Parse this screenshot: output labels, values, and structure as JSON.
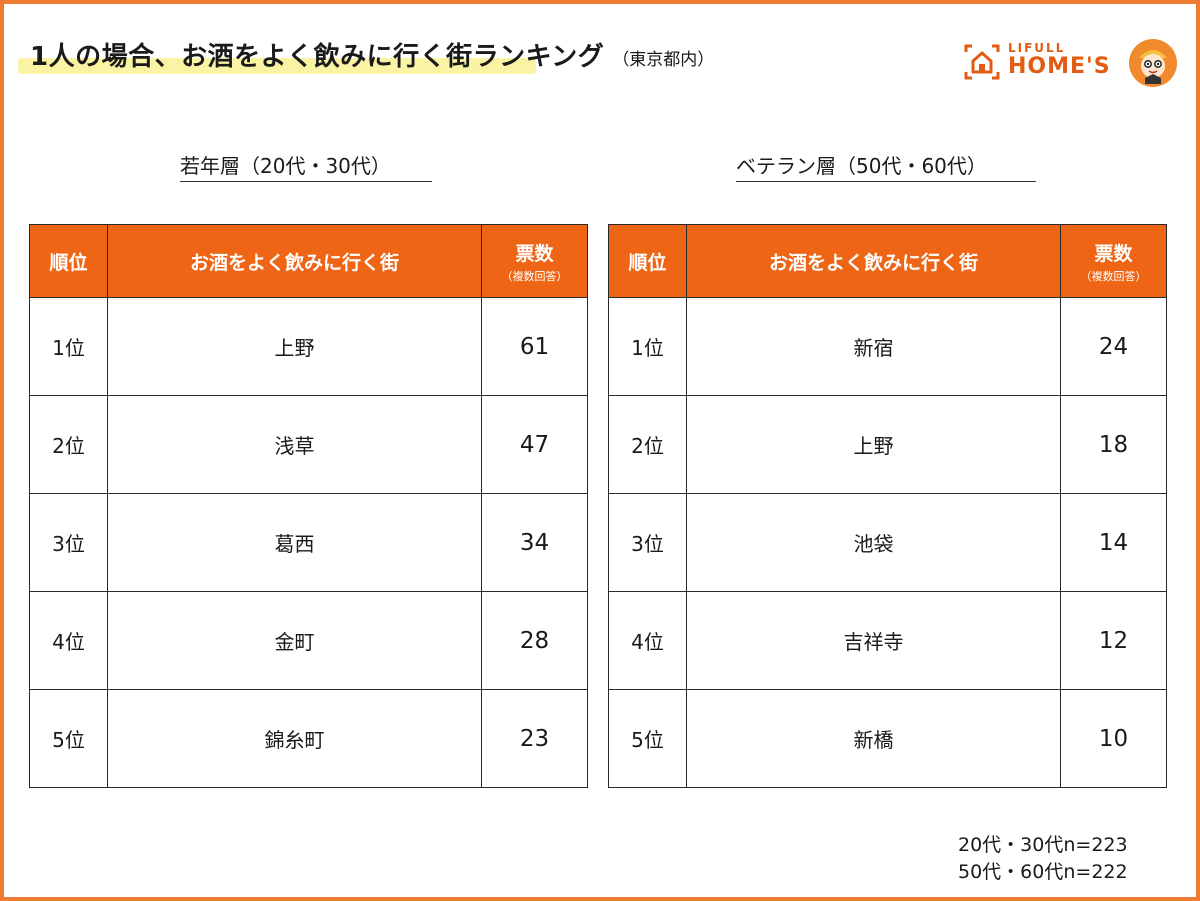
{
  "header": {
    "title": "1人の場合、お酒をよく飲みに行く街ランキング",
    "subtitle": "（東京都内）"
  },
  "logo": {
    "line1": "LIFULL",
    "line2": "HOME'S",
    "brand_color": "#e25c14"
  },
  "table_headers": {
    "rank": "順位",
    "town": "お酒をよく飲みに行く街",
    "votes": "票数",
    "votes_note": "（複数回答）"
  },
  "young": {
    "label": "若年層（20代・30代）",
    "rows": [
      {
        "rank": "1位",
        "town": "上野",
        "votes": "61"
      },
      {
        "rank": "2位",
        "town": "浅草",
        "votes": "47"
      },
      {
        "rank": "3位",
        "town": "葛西",
        "votes": "34"
      },
      {
        "rank": "4位",
        "town": "金町",
        "votes": "28"
      },
      {
        "rank": "5位",
        "town": "錦糸町",
        "votes": "23"
      }
    ]
  },
  "veteran": {
    "label": "ベテラン層（50代・60代）",
    "rows": [
      {
        "rank": "1位",
        "town": "新宿",
        "votes": "24"
      },
      {
        "rank": "2位",
        "town": "上野",
        "votes": "18"
      },
      {
        "rank": "3位",
        "town": "池袋",
        "votes": "14"
      },
      {
        "rank": "4位",
        "town": "吉祥寺",
        "votes": "12"
      },
      {
        "rank": "5位",
        "town": "新橋",
        "votes": "10"
      }
    ]
  },
  "footnotes": [
    "20代・30代n=223",
    "50代・60代n=222"
  ],
  "colors": {
    "accent": "#ee6516",
    "border": "#ee7d33",
    "highlight": "#fbf3a4"
  }
}
